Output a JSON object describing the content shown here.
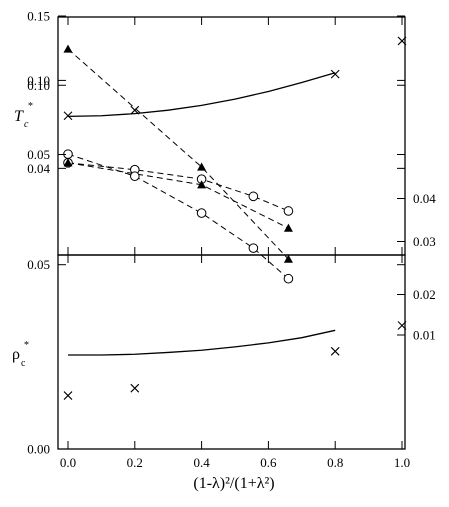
{
  "chart_data": [
    {
      "panel": "upper",
      "type": "scatter",
      "ylabel": {
        "main": "T",
        "sub": "c",
        "sup": "*"
      },
      "left_axis": {
        "ticks": [
          {
            "value": 0.15,
            "label": "0.15"
          },
          {
            "value": 0.1,
            "label": "0.10"
          },
          {
            "value": 0.05,
            "label": "0.05"
          },
          {
            "value": 0.04,
            "label": "0.04"
          }
        ]
      },
      "right_axis": {
        "ticks": [
          {
            "value": 0.04,
            "label": "0.04"
          },
          {
            "value": 0.03,
            "label": "0.03"
          }
        ]
      },
      "series": [
        {
          "marker": "x",
          "axis": "left",
          "x": [
            0.0,
            0.2,
            0.8,
            1.0
          ],
          "y": [
            0.078,
            0.082,
            0.108,
            0.132
          ]
        },
        {
          "marker": "line-solid",
          "axis": "left",
          "x": [
            0.0,
            0.1,
            0.2,
            0.3,
            0.4,
            0.5,
            0.6,
            0.7,
            0.8
          ],
          "y": [
            0.0775,
            0.078,
            0.0795,
            0.082,
            0.0855,
            0.09,
            0.0955,
            0.102,
            0.109
          ]
        },
        {
          "marker": "circle",
          "axis": "right",
          "dashed": true,
          "x": [
            0.0,
            0.2,
            0.4,
            0.555,
            0.66
          ],
          "y": [
            0.0483,
            0.0467,
            0.0445,
            0.0405,
            0.0371
          ]
        },
        {
          "marker": "triangle",
          "axis": "right",
          "dashed": true,
          "x": [
            0.0,
            0.4,
            0.66
          ],
          "y": [
            0.0483,
            0.0432,
            0.0331
          ]
        }
      ]
    },
    {
      "panel": "lower",
      "type": "scatter",
      "xlabel": "(1-λ)²/(1+λ²)",
      "ylabel": {
        "main": "ρ",
        "sub": "c",
        "sup": "*"
      },
      "xlim": [
        0,
        1
      ],
      "x_ticks": [
        "0.0",
        "0.2",
        "0.4",
        "0.6",
        "0.8",
        "1.0"
      ],
      "x_tick_values": [
        0.0,
        0.2,
        0.4,
        0.6,
        0.8,
        1.0
      ],
      "left_axis": {
        "ylim": [
          0.0,
          0.12
        ],
        "ticks": [
          {
            "value": 0.1,
            "label": "0.10"
          },
          {
            "value": 0.05,
            "label": "0.05"
          },
          {
            "value": 0.0,
            "label": "0.00"
          }
        ]
      },
      "right_axis": {
        "ticks": [
          {
            "value": 0.02,
            "label": "0.02"
          },
          {
            "value": 0.01,
            "label": "0.01"
          }
        ]
      },
      "series": [
        {
          "marker": "x",
          "axis": "left",
          "x": [
            0.0,
            0.2,
            0.8,
            1.0
          ],
          "y": [
            0.0145,
            0.0165,
            0.0265,
            0.0335
          ]
        },
        {
          "marker": "line-solid",
          "axis": "left",
          "x": [
            0.0,
            0.1,
            0.2,
            0.3,
            0.4,
            0.5,
            0.6,
            0.7,
            0.8
          ],
          "y": [
            0.0255,
            0.0255,
            0.0257,
            0.0262,
            0.0268,
            0.0277,
            0.0288,
            0.0302,
            0.0322
          ]
        },
        {
          "marker": "triangle",
          "axis": "left",
          "dashed": true,
          "x": [
            0.0,
            0.4,
            0.66
          ],
          "y": [
            0.1085,
            0.0765,
            0.0515
          ]
        },
        {
          "marker": "circle",
          "axis": "left",
          "dashed": true,
          "x": [
            0.0,
            0.2,
            0.4,
            0.555,
            0.66
          ],
          "y": [
            0.08,
            0.074,
            0.064,
            0.0545,
            0.0462
          ]
        }
      ]
    }
  ]
}
